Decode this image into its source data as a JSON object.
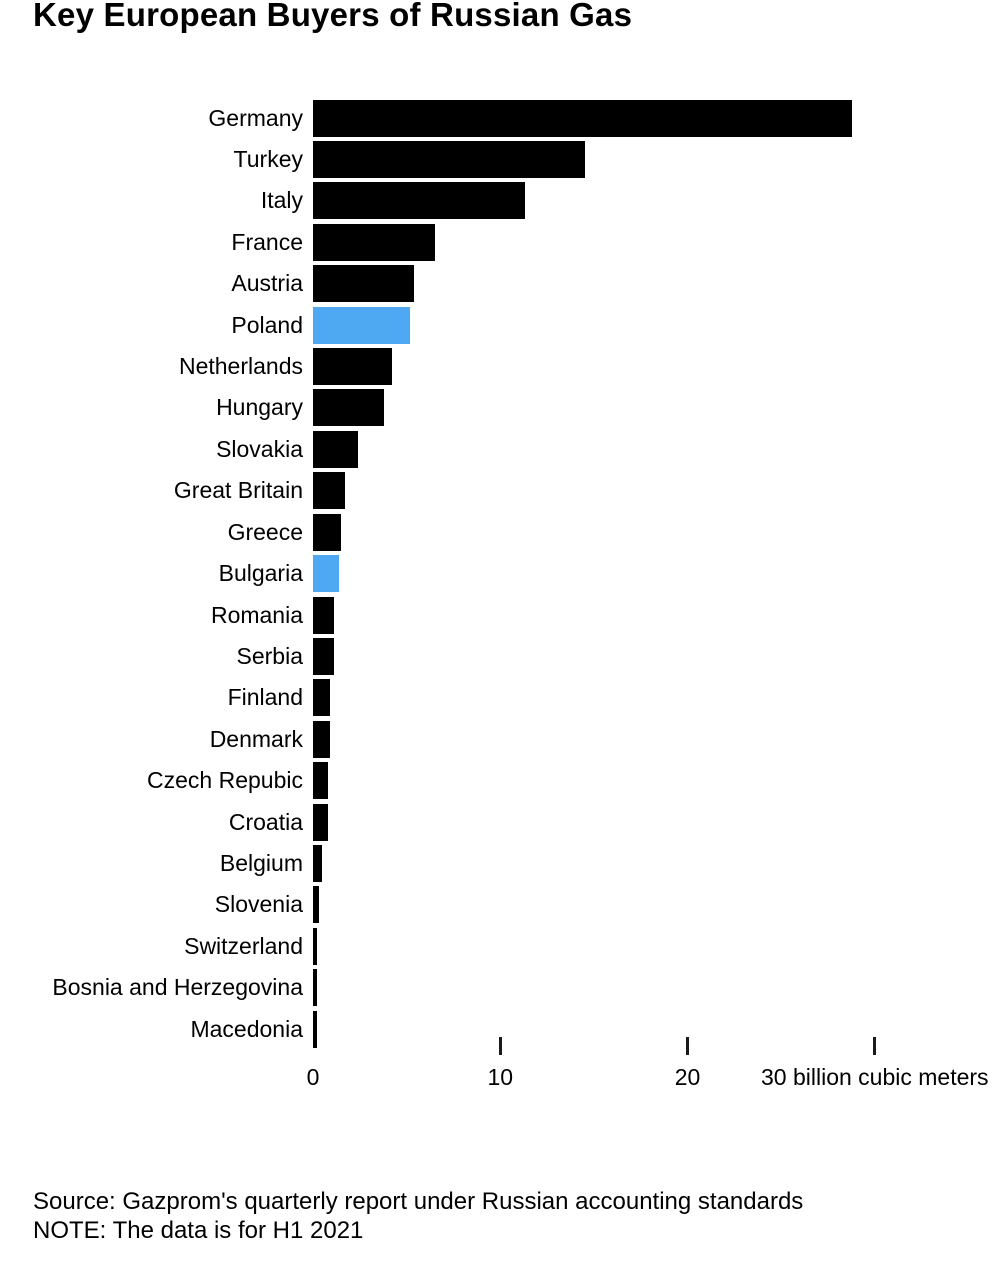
{
  "title": "Key European Buyers of Russian Gas",
  "chart_data": {
    "type": "bar",
    "orientation": "horizontal",
    "title": "Key European Buyers of Russian Gas",
    "unit": "billion cubic meters",
    "categories": [
      "Germany",
      "Turkey",
      "Italy",
      "France",
      "Austria",
      "Poland",
      "Netherlands",
      "Hungary",
      "Slovakia",
      "Great Britain",
      "Greece",
      "Bulgaria",
      "Romania",
      "Serbia",
      "Finland",
      "Denmark",
      "Czech Repubic",
      "Croatia",
      "Belgium",
      "Slovenia",
      "Switzerland",
      "Bosnia and Herzegovina",
      "Macedonia"
    ],
    "values": [
      28.8,
      14.5,
      11.3,
      6.5,
      5.4,
      5.2,
      4.2,
      3.8,
      2.4,
      1.7,
      1.5,
      1.4,
      1.1,
      1.1,
      0.9,
      0.9,
      0.8,
      0.8,
      0.5,
      0.3,
      0.2,
      0.2,
      0.2
    ],
    "highlighted_categories": [
      "Poland",
      "Bulgaria"
    ],
    "colors": {
      "bar": "#000000",
      "highlight": "#4EA8F2"
    },
    "x_axis": {
      "range": [
        0,
        36.9
      ],
      "tick_marks": [
        10,
        20,
        30
      ],
      "tick_labels": [
        {
          "value": 0,
          "label": "0"
        },
        {
          "value": 10,
          "label": "10"
        },
        {
          "value": 20,
          "label": "20"
        },
        {
          "value": 30,
          "label": "30 billion cubic meters"
        }
      ]
    },
    "grid": false,
    "legend": false
  },
  "footer": {
    "source": "Source: Gazprom's quarterly report under Russian accounting standards",
    "note": "NOTE: The data is for H1 2021"
  }
}
